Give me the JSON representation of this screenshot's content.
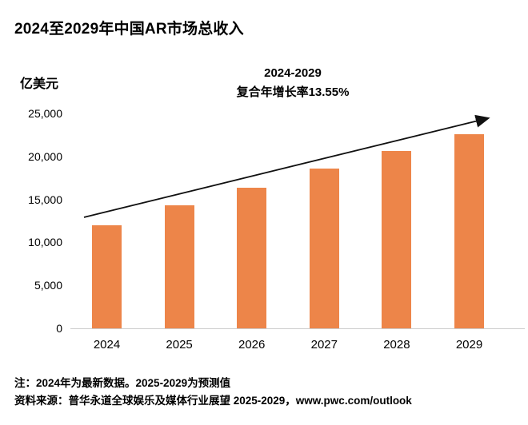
{
  "title": "2024至2029年中国AR市场总收入",
  "chart_data": {
    "type": "bar",
    "title": "2024至2029年中国AR市场总收入",
    "categories": [
      "2024",
      "2025",
      "2026",
      "2027",
      "2028",
      "2029"
    ],
    "values": [
      12000,
      14300,
      16400,
      18600,
      20600,
      22600
    ],
    "xlabel": "",
    "ylabel": "亿美元",
    "ylim": [
      0,
      25000
    ],
    "yticks": [
      0,
      5000,
      10000,
      15000,
      20000,
      25000
    ],
    "ytick_labels": [
      "0",
      "5,000",
      "10,000",
      "15,000",
      "20,000",
      "25,000"
    ],
    "grid": false,
    "legend_position": "none",
    "bar_color": "#ED8549",
    "trend_arrow": true,
    "annotation": {
      "line1": "2024-2029",
      "line2": "复合年增长率13.55%"
    }
  },
  "colors": {
    "bar": "#ED8549",
    "arrow": "#111111",
    "axis_line": "#cccccc",
    "text": "#000000",
    "background": "#ffffff"
  },
  "notes": {
    "note1": "注：2024年为最新数据。2025-2029为预测值",
    "note2": "资料来源：普华永道全球娱乐及媒体行业展望 2025-2029，www.pwc.com/outlook"
  }
}
